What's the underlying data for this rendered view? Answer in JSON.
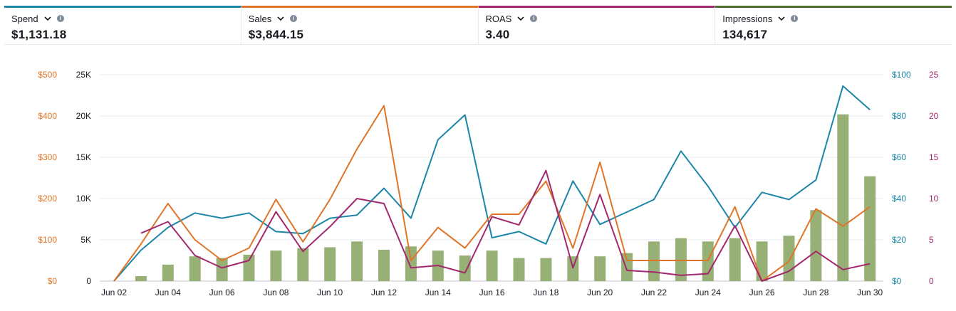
{
  "metrics": [
    {
      "label": "Spend",
      "value": "$1,131.18",
      "color": "#1b86a8"
    },
    {
      "label": "Sales",
      "value": "$3,844.15",
      "color": "#e07427"
    },
    {
      "label": "ROAS",
      "value": "3.40",
      "color": "#a2286e"
    },
    {
      "label": "Impressions",
      "value": "134,617",
      "color": "#4f6e2b"
    }
  ],
  "icons": {
    "dropdown": "chevron-down-icon",
    "info": "info-icon"
  },
  "chart_data": {
    "type": "bar+line",
    "x": [
      "Jun 02",
      "Jun 03",
      "Jun 04",
      "Jun 05",
      "Jun 06",
      "Jun 07",
      "Jun 08",
      "Jun 09",
      "Jun 10",
      "Jun 11",
      "Jun 12",
      "Jun 13",
      "Jun 14",
      "Jun 15",
      "Jun 16",
      "Jun 17",
      "Jun 18",
      "Jun 19",
      "Jun 20",
      "Jun 21",
      "Jun 22",
      "Jun 23",
      "Jun 24",
      "Jun 25",
      "Jun 26",
      "Jun 27",
      "Jun 28",
      "Jun 29",
      "Jun 30"
    ],
    "x_tick_labels": [
      "Jun 02",
      "Jun 04",
      "Jun 06",
      "Jun 08",
      "Jun 10",
      "Jun 12",
      "Jun 14",
      "Jun 16",
      "Jun 18",
      "Jun 20",
      "Jun 22",
      "Jun 24",
      "Jun 26",
      "Jun 28",
      "Jun 30"
    ],
    "grid": true,
    "axes": {
      "sales": {
        "side": "left-outer",
        "range": [
          0,
          500
        ],
        "ticks": [
          "$0",
          "$100",
          "$200",
          "$300",
          "$400",
          "$500"
        ],
        "color": "#e07427"
      },
      "impressions": {
        "side": "left-inner",
        "range": [
          0,
          25000
        ],
        "ticks": [
          "0",
          "5K",
          "10K",
          "15K",
          "20K",
          "25K"
        ],
        "color": "#16191f"
      },
      "spend": {
        "side": "right-inner",
        "range": [
          0,
          100
        ],
        "ticks": [
          "$0",
          "$20",
          "$40",
          "$60",
          "$80",
          "$100"
        ],
        "color": "#1b86a8"
      },
      "roas": {
        "side": "right-outer",
        "range": [
          0,
          25
        ],
        "ticks": [
          "0",
          "5",
          "10",
          "15",
          "20",
          "25"
        ],
        "color": "#a2286e"
      }
    },
    "series": [
      {
        "name": "Impressions",
        "type": "bar",
        "axis": "impressions",
        "color": "#97b076",
        "values": [
          0,
          600,
          2000,
          3000,
          2800,
          3200,
          3700,
          4000,
          4100,
          4800,
          3800,
          4200,
          3700,
          3100,
          3700,
          2800,
          2800,
          3000,
          3000,
          3400,
          4800,
          5200,
          4800,
          5200,
          4800,
          5500,
          8600,
          20200,
          12700
        ]
      },
      {
        "name": "Spend",
        "type": "line",
        "axis": "spend",
        "color": "#1b86a8",
        "values": [
          0,
          15,
          26,
          33,
          30.5,
          33,
          24,
          23,
          30.5,
          32,
          45,
          30.5,
          68.5,
          80.5,
          21,
          24,
          18,
          48.5,
          27.5,
          33.5,
          39.5,
          63,
          46,
          26,
          43,
          39.5,
          49,
          94.5,
          83
        ]
      },
      {
        "name": "Sales",
        "type": "line",
        "axis": "sales",
        "color": "#e07427",
        "values": [
          0,
          90,
          188,
          100,
          50,
          80,
          198,
          95,
          198,
          320,
          425,
          50,
          130,
          80,
          162,
          162,
          242,
          80,
          288,
          50,
          50,
          50,
          50,
          180,
          0,
          48,
          175,
          133,
          180
        ]
      },
      {
        "name": "ROAS",
        "type": "line",
        "axis": "roas",
        "color": "#a2286e",
        "values": [
          null,
          5.8,
          7.2,
          3.1,
          1.6,
          2.5,
          8.4,
          3.6,
          6.6,
          10,
          9.4,
          1.6,
          1.9,
          1,
          7.8,
          6.8,
          13.4,
          1.6,
          10.5,
          1.3,
          1.1,
          0.7,
          0.9,
          6.7,
          0,
          1.2,
          3.6,
          1.4,
          2.1
        ]
      }
    ]
  }
}
